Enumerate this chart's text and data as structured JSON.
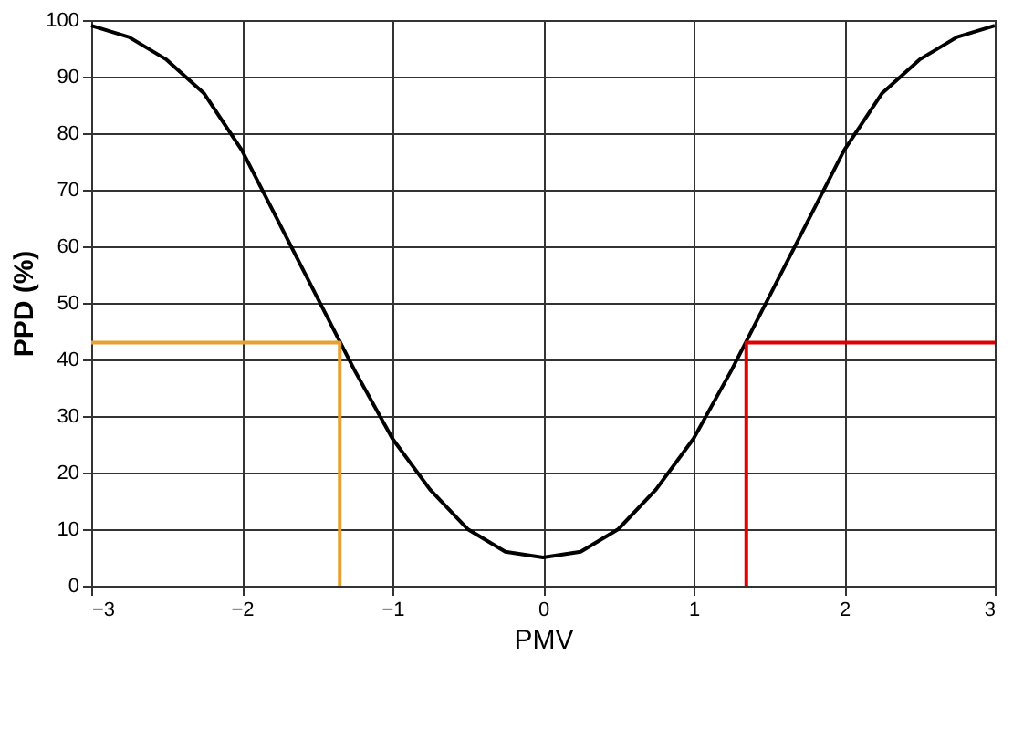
{
  "chart_data": {
    "type": "line",
    "xlabel": "PMV",
    "ylabel": "PPD (%)",
    "xlim": [
      -3,
      3
    ],
    "xticks": [
      -3,
      -2,
      -1,
      0,
      1,
      2,
      3
    ],
    "ylim": [
      0,
      100
    ],
    "yticks": [
      0,
      10,
      20,
      30,
      40,
      50,
      60,
      70,
      80,
      90,
      100
    ],
    "grid": true,
    "marker": "none",
    "line_style": "solid",
    "series": [
      {
        "color": "#000000",
        "x": [
          -3,
          -2.75,
          -2.5,
          -2.25,
          -2,
          -1.75,
          -1.5,
          -1.25,
          -1,
          -0.75,
          -0.5,
          -0.25,
          0,
          0.25,
          0.5,
          0.75,
          1,
          1.25,
          1.5,
          1.75,
          2,
          2.25,
          2.5,
          2.75,
          3
        ],
        "values": [
          99,
          97,
          93,
          87,
          77,
          64,
          51,
          38,
          26,
          17,
          10,
          6,
          5,
          6,
          10,
          17,
          26,
          38,
          51,
          64,
          77,
          87,
          93,
          97,
          99
        ]
      },
      {
        "color": "#e8a030",
        "x": [
          -3,
          -1.35,
          -1.35
        ],
        "values": [
          43,
          43,
          0
        ]
      },
      {
        "color": "#e00000",
        "x": [
          3,
          1.35,
          1.35
        ],
        "values": [
          43,
          43,
          0
        ]
      }
    ]
  }
}
